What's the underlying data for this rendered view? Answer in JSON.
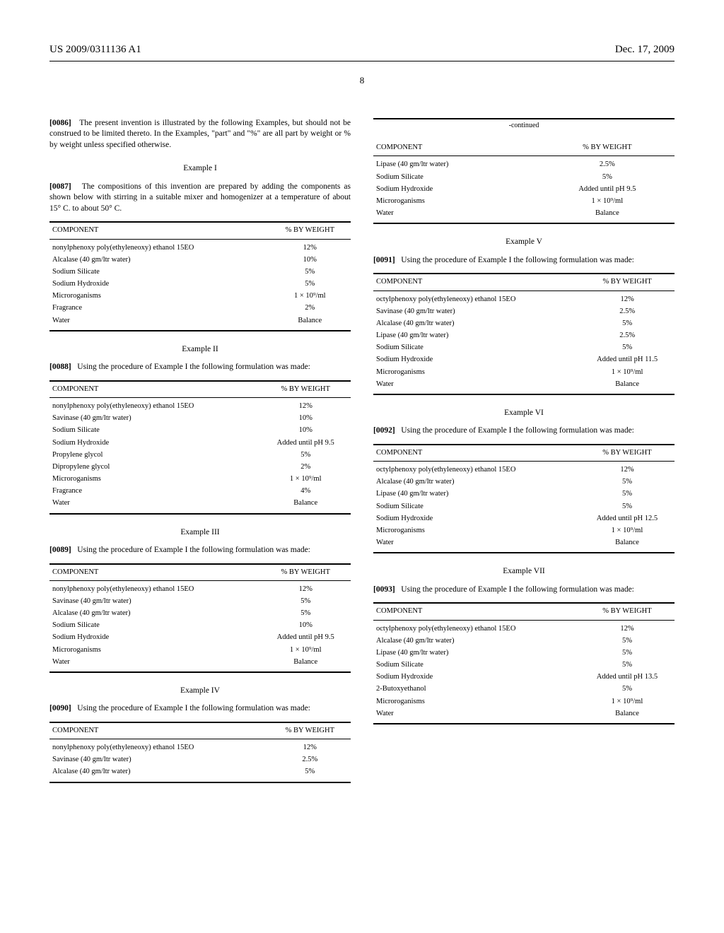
{
  "header": {
    "left": "US 2009/0311136 A1",
    "right": "Dec. 17, 2009"
  },
  "pageNumber": "8",
  "left": {
    "p86": {
      "num": "[0086]",
      "text": "The present invention is illustrated by the following Examples, but should not be construed to be limited thereto. In the Examples, \"part\" and \"%\" are all part by weight or % by weight unless specified otherwise."
    },
    "ex1title": "Example I",
    "p87": {
      "num": "[0087]",
      "text": "The compositions of this invention are prepared by adding the components as shown below with stirring in a suitable mixer and homogenizer at a temperature of about 15° C. to about 50° C."
    },
    "t1": {
      "h1": "COMPONENT",
      "h2": "% BY WEIGHT",
      "rows": [
        [
          "nonylphenoxy poly(ethyleneoxy) ethanol 15EO",
          "12%"
        ],
        [
          "Alcalase (40 gm/ltr water)",
          "10%"
        ],
        [
          "Sodium Silicate",
          "5%"
        ],
        [
          "Sodium Hydroxide",
          "5%"
        ],
        [
          "Microroganisms",
          "1 × 10⁹/ml"
        ],
        [
          "Fragrance",
          "2%"
        ],
        [
          "Water",
          "Balance"
        ]
      ]
    },
    "ex2title": "Example II",
    "p88": {
      "num": "[0088]",
      "text": "Using the procedure of Example I the following formulation was made:"
    },
    "t2": {
      "h1": "COMPONENT",
      "h2": "% BY WEIGHT",
      "rows": [
        [
          "nonylphenoxy poly(ethyleneoxy) ethanol 15EO",
          "12%"
        ],
        [
          "Savinase (40 gm/ltr water)",
          "10%"
        ],
        [
          "Sodium Silicate",
          "10%"
        ],
        [
          "Sodium Hydroxide",
          "Added until pH 9.5"
        ],
        [
          "Propylene glycol",
          "5%"
        ],
        [
          "Dipropylene glycol",
          "2%"
        ],
        [
          "Microroganisms",
          "1 × 10⁹/ml"
        ],
        [
          "Fragrance",
          "4%"
        ],
        [
          "Water",
          "Balance"
        ]
      ]
    },
    "ex3title": "Example III",
    "p89": {
      "num": "[0089]",
      "text": "Using the procedure of Example I the following formulation was made:"
    },
    "t3": {
      "h1": "COMPONENT",
      "h2": "% BY WEIGHT",
      "rows": [
        [
          "nonylphenoxy poly(ethyleneoxy) ethanol 15EO",
          "12%"
        ],
        [
          "Savinase (40 gm/ltr water)",
          "5%"
        ],
        [
          "Alcalase (40 gm/ltr water)",
          "5%"
        ],
        [
          "Sodium Silicate",
          "10%"
        ],
        [
          "Sodium Hydroxide",
          "Added until pH 9.5"
        ],
        [
          "Microroganisms",
          "1 × 10⁹/ml"
        ],
        [
          "Water",
          "Balance"
        ]
      ]
    },
    "ex4title": "Example IV",
    "p90": {
      "num": "[0090]",
      "text": "Using the procedure of Example I the following formulation was made:"
    },
    "t4": {
      "h1": "COMPONENT",
      "h2": "% BY WEIGHT",
      "rows": [
        [
          "nonylphenoxy poly(ethyleneoxy) ethanol 15EO",
          "12%"
        ],
        [
          "Savinase (40 gm/ltr water)",
          "2.5%"
        ],
        [
          "Alcalase (40 gm/ltr water)",
          "5%"
        ]
      ]
    }
  },
  "right": {
    "contLabel": "-continued",
    "t4c": {
      "h1": "COMPONENT",
      "h2": "% BY WEIGHT",
      "rows": [
        [
          "Lipase (40 gm/ltr water)",
          "2.5%"
        ],
        [
          "Sodium Silicate",
          "5%"
        ],
        [
          "Sodium Hydroxide",
          "Added until pH 9.5"
        ],
        [
          "Microroganisms",
          "1 × 10⁹/ml"
        ],
        [
          "Water",
          "Balance"
        ]
      ]
    },
    "ex5title": "Example V",
    "p91": {
      "num": "[0091]",
      "text": "Using the procedure of Example I the following formulation was made:"
    },
    "t5": {
      "h1": "COMPONENT",
      "h2": "% BY WEIGHT",
      "rows": [
        [
          "octylphenoxy poly(ethyleneoxy) ethanol 15EO",
          "12%"
        ],
        [
          "Savinase (40 gm/ltr water)",
          "2.5%"
        ],
        [
          "Alcalase (40 gm/ltr water)",
          "5%"
        ],
        [
          "Lipase (40 gm/ltr water)",
          "2.5%"
        ],
        [
          "Sodium Silicate",
          "5%"
        ],
        [
          "Sodium Hydroxide",
          "Added until pH 11.5"
        ],
        [
          "Microroganisms",
          "1 × 10⁹/ml"
        ],
        [
          "Water",
          "Balance"
        ]
      ]
    },
    "ex6title": "Example VI",
    "p92": {
      "num": "[0092]",
      "text": "Using the procedure of Example I the following formulation was made:"
    },
    "t6": {
      "h1": "COMPONENT",
      "h2": "% BY WEIGHT",
      "rows": [
        [
          "octylphenoxy poly(ethyleneoxy) ethanol 15EO",
          "12%"
        ],
        [
          "Alcalase (40 gm/ltr water)",
          "5%"
        ],
        [
          "Lipase (40 gm/ltr water)",
          "5%"
        ],
        [
          "Sodium Silicate",
          "5%"
        ],
        [
          "Sodium Hydroxide",
          "Added until pH 12.5"
        ],
        [
          "Microroganisms",
          "1 × 10⁹/ml"
        ],
        [
          "Water",
          "Balance"
        ]
      ]
    },
    "ex7title": "Example VII",
    "p93": {
      "num": "[0093]",
      "text": "Using the procedure of Example I the following formulation was made:"
    },
    "t7": {
      "h1": "COMPONENT",
      "h2": "% BY WEIGHT",
      "rows": [
        [
          "octylphenoxy poly(ethyleneoxy) ethanol 15EO",
          "12%"
        ],
        [
          "Alcalase (40 gm/ltr water)",
          "5%"
        ],
        [
          "Lipase (40 gm/ltr water)",
          "5%"
        ],
        [
          "Sodium Silicate",
          "5%"
        ],
        [
          "Sodium Hydroxide",
          "Added until pH 13.5"
        ],
        [
          "2-Butoxyethanol",
          "5%"
        ],
        [
          "Microroganisms",
          "1 × 10⁹/ml"
        ],
        [
          "Water",
          "Balance"
        ]
      ]
    }
  }
}
